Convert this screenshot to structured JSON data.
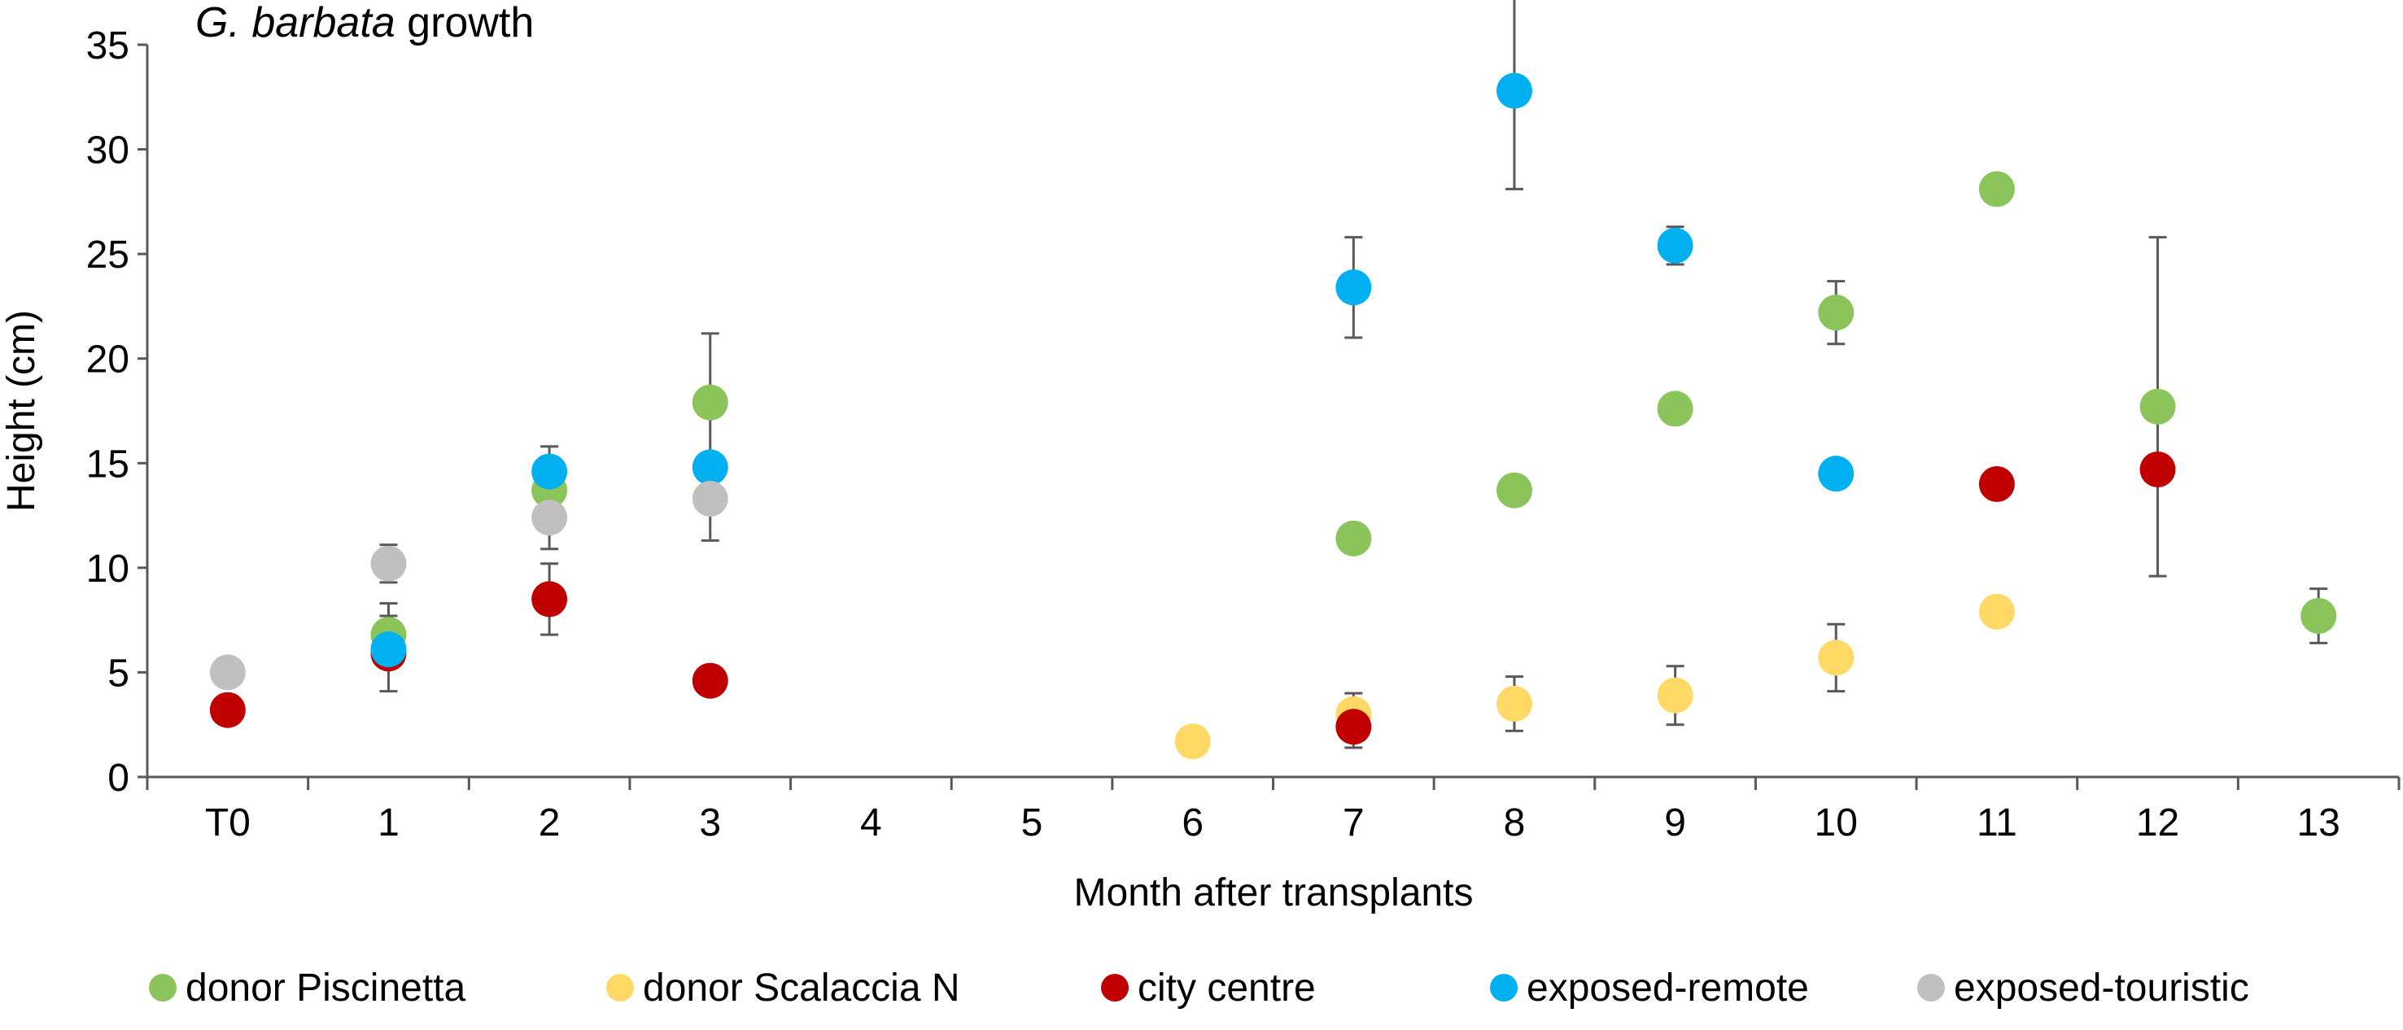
{
  "chart_data": {
    "type": "scatter",
    "title_italic": "G. barbata",
    "title_rest": " growth",
    "xlabel": "Month after transplants",
    "ylabel": "Height (cm)",
    "categories": [
      "T0",
      "1",
      "2",
      "3",
      "4",
      "5",
      "6",
      "7",
      "8",
      "9",
      "10",
      "11",
      "12",
      "13"
    ],
    "ylim": [
      0,
      35
    ],
    "yticks": [
      0,
      5,
      10,
      15,
      20,
      25,
      30,
      35
    ],
    "grid": false,
    "legend_position": "bottom",
    "series": [
      {
        "name": "donor Piscinetta",
        "color": "#8bc45a",
        "points": [
          {
            "x": "1",
            "y": 6.8,
            "err": 1.5
          },
          {
            "x": "2",
            "y": 13.7,
            "err": 1.5
          },
          {
            "x": "3",
            "y": 17.9,
            "err": 3.3
          },
          {
            "x": "7",
            "y": 11.4,
            "err": 0
          },
          {
            "x": "8",
            "y": 13.7,
            "err": 0
          },
          {
            "x": "9",
            "y": 17.6,
            "err": 0
          },
          {
            "x": "10",
            "y": 22.2,
            "err": 1.5
          },
          {
            "x": "11",
            "y": 28.1,
            "err": 0
          },
          {
            "x": "12",
            "y": 17.7,
            "err": 8.1
          },
          {
            "x": "13",
            "y": 7.7,
            "err": 1.3
          }
        ]
      },
      {
        "name": "donor Scalaccia N",
        "color": "#ffd966",
        "points": [
          {
            "x": "6",
            "y": 1.7,
            "err": 0
          },
          {
            "x": "7",
            "y": 3.0,
            "err": 1.0
          },
          {
            "x": "8",
            "y": 3.5,
            "err": 1.3
          },
          {
            "x": "9",
            "y": 3.9,
            "err": 1.4
          },
          {
            "x": "10",
            "y": 5.7,
            "err": 1.6
          },
          {
            "x": "11",
            "y": 7.9,
            "err": 0
          }
        ]
      },
      {
        "name": "city centre",
        "color": "#c00000",
        "points": [
          {
            "x": "T0",
            "y": 3.2,
            "err": 0
          },
          {
            "x": "1",
            "y": 5.9,
            "err": 1.8
          },
          {
            "x": "2",
            "y": 8.5,
            "err": 1.7
          },
          {
            "x": "3",
            "y": 4.6,
            "err": 0
          },
          {
            "x": "7",
            "y": 2.4,
            "err": 1.0
          },
          {
            "x": "11",
            "y": 14.0,
            "err": 0
          },
          {
            "x": "12",
            "y": 14.7,
            "err": 0
          }
        ]
      },
      {
        "name": "exposed-remote",
        "color": "#00b0f0",
        "points": [
          {
            "x": "1",
            "y": 6.1,
            "err": 0
          },
          {
            "x": "2",
            "y": 14.6,
            "err": 1.2
          },
          {
            "x": "3",
            "y": 14.8,
            "err": 0
          },
          {
            "x": "7",
            "y": 23.4,
            "err": 2.4
          },
          {
            "x": "8",
            "y": 32.8,
            "err": 4.7
          },
          {
            "x": "9",
            "y": 25.4,
            "err": 0.9
          },
          {
            "x": "10",
            "y": 14.5,
            "err": 0
          }
        ]
      },
      {
        "name": "exposed-touristic",
        "color": "#c0c0c0",
        "points": [
          {
            "x": "T0",
            "y": 5.0,
            "err": 0
          },
          {
            "x": "1",
            "y": 10.2,
            "err": 0.9
          },
          {
            "x": "2",
            "y": 12.4,
            "err": 1.5
          },
          {
            "x": "3",
            "y": 13.3,
            "err": 2.0
          }
        ]
      }
    ]
  }
}
